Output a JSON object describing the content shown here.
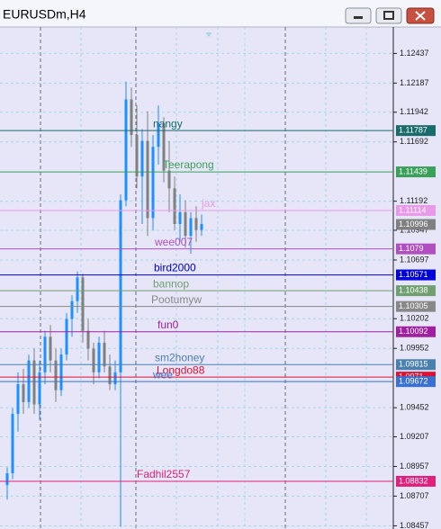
{
  "chart_data": {
    "type": "candlestick",
    "title": "EURUSDm,H4",
    "open": [
      1.088,
      1.089,
      1.094,
      1.0965,
      1.095,
      1.0985,
      1.0948,
      1.0975,
      1.1005,
      1.0985,
      1.096,
      1.099,
      1.102,
      1.1035,
      1.1055,
      1.101,
      1.0995,
      1.0975,
      1.1,
      1.098,
      1.0965,
      1.0975,
      1.112,
      1.1205,
      1.1175,
      1.114,
      1.117,
      1.1105,
      1.1165,
      1.1185,
      1.1145,
      1.113,
      1.11,
      1.111,
      1.109,
      1.1105,
      1.1095
    ],
    "high": [
      1.0895,
      1.0945,
      1.0975,
      1.0978,
      1.099,
      1.0995,
      1.0985,
      1.101,
      1.1015,
      1.0995,
      1.0995,
      1.1025,
      1.104,
      1.106,
      1.1058,
      1.102,
      1.1,
      1.1005,
      1.101,
      1.099,
      1.0985,
      1.1125,
      1.122,
      1.1215,
      1.12,
      1.118,
      1.1195,
      1.1175,
      1.12,
      1.119,
      1.117,
      1.114,
      1.1125,
      1.112,
      1.111,
      1.1115,
      1.1108
    ],
    "low": [
      1.0868,
      1.0885,
      1.0925,
      1.094,
      1.0945,
      1.094,
      1.0935,
      1.0965,
      1.0975,
      1.095,
      1.0955,
      1.0985,
      1.1005,
      1.1025,
      1.1,
      1.0985,
      1.0965,
      1.097,
      1.0975,
      1.096,
      1.096,
      1.0845,
      1.1115,
      1.1165,
      1.113,
      1.11,
      1.109,
      1.1095,
      1.115,
      1.1135,
      1.111,
      1.1095,
      1.1085,
      1.108,
      1.1075,
      1.1085,
      1.109
    ],
    "close": [
      1.089,
      1.094,
      1.0965,
      1.095,
      1.0985,
      1.0948,
      1.0975,
      1.1005,
      1.0985,
      1.096,
      1.099,
      1.102,
      1.1035,
      1.1055,
      1.101,
      1.0995,
      1.0975,
      1.1,
      1.098,
      1.0965,
      1.0975,
      1.112,
      1.1205,
      1.1175,
      1.114,
      1.117,
      1.1105,
      1.1165,
      1.1185,
      1.1145,
      1.113,
      1.11,
      1.111,
      1.109,
      1.1105,
      1.1095,
      1.11
    ],
    "up_color": "#1e90ff",
    "down_color": "#808080",
    "ylim": [
      1.0843,
      1.1266
    ],
    "yticks": [
      1.12437,
      1.12187,
      1.11942,
      1.11692,
      1.11192,
      1.10947,
      1.10697,
      1.10202,
      1.09952,
      1.09452,
      1.09207,
      1.08957,
      1.08707,
      1.08457
    ],
    "grid": true,
    "levels": [
      {
        "name": "nangy",
        "value": 1.11787,
        "color": "#1a6b6b"
      },
      {
        "name": "Teerapong",
        "value": 1.11439,
        "color": "#3aa05a"
      },
      {
        "name": "jax",
        "value": 1.11114,
        "color": "#e89ae8"
      },
      {
        "name": "wee007",
        "value": 1.1079,
        "color": "#b050c0"
      },
      {
        "name": "bird2000",
        "value": 1.10571,
        "color": "#0000d8"
      },
      {
        "name": "bannop",
        "value": 1.10438,
        "color": "#70a070"
      },
      {
        "name": "Pootumyw",
        "value": 1.10305,
        "color": "#888888"
      },
      {
        "name": "fun0",
        "value": 1.10092,
        "color": "#a020a0"
      },
      {
        "name": "sm2honey",
        "value": 1.09815,
        "color": "#4a80b0"
      },
      {
        "name": "Longdo88",
        "value": 1.0971,
        "color": "#e01030"
      },
      {
        "name": "wee",
        "value": 1.09672,
        "color": "#3a70d0"
      },
      {
        "name": "Fadhil2557",
        "value": 1.08832,
        "color": "#e0207a"
      }
    ],
    "current_price": 1.10996
  }
}
